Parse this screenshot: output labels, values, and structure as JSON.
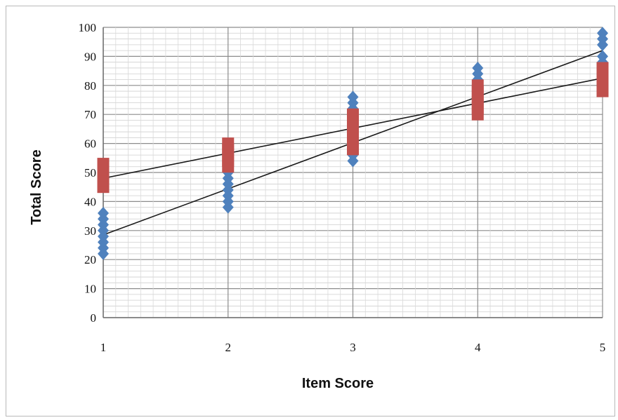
{
  "chart_data": {
    "type": "scatter",
    "title": "",
    "xlabel": "Item Score",
    "ylabel": "Total Score",
    "xlim": [
      1,
      5
    ],
    "ylim": [
      0,
      100
    ],
    "x_ticks": [
      "1",
      "2",
      "3",
      "4",
      "5"
    ],
    "y_ticks": [
      "0",
      "10",
      "20",
      "30",
      "40",
      "50",
      "60",
      "70",
      "80",
      "90",
      "100"
    ],
    "grid": true,
    "legend": "none",
    "series": [
      {
        "marker": "diamond",
        "color": "#4f81bd",
        "x": [
          1,
          1,
          1,
          1,
          1,
          1,
          1,
          1,
          2,
          2,
          2,
          2,
          2,
          2,
          2,
          2,
          2,
          2,
          2,
          3,
          3,
          3,
          3,
          3,
          3,
          3,
          3,
          3,
          3,
          3,
          3,
          4,
          4,
          4,
          4,
          4,
          4,
          4,
          4,
          4,
          5,
          5,
          5,
          5,
          5
        ],
        "y": [
          22,
          24,
          26,
          28,
          30,
          32,
          34,
          36,
          38,
          40,
          42,
          44,
          46,
          48,
          50,
          52,
          54,
          56,
          58,
          54,
          56,
          58,
          60,
          62,
          64,
          66,
          68,
          70,
          72,
          74,
          76,
          70,
          72,
          74,
          76,
          78,
          80,
          82,
          84,
          86,
          88,
          90,
          94,
          96,
          98
        ]
      },
      {
        "marker": "square",
        "color": "#c0504d",
        "x": [
          1,
          1,
          1,
          1,
          1,
          2,
          2,
          2,
          2,
          2,
          3,
          3,
          3,
          3,
          3,
          3,
          3,
          4,
          4,
          4,
          4,
          4,
          4,
          5,
          5,
          5,
          5,
          5
        ],
        "y": [
          45,
          47,
          49,
          51,
          53,
          52,
          54,
          56,
          58,
          60,
          58,
          60,
          62,
          64,
          66,
          68,
          70,
          70,
          72,
          74,
          76,
          78,
          80,
          78,
          80,
          82,
          84,
          86
        ]
      }
    ],
    "trendlines": [
      {
        "color": "#1a1a1a",
        "points": [
          [
            1,
            28.5
          ],
          [
            5,
            92
          ]
        ]
      },
      {
        "color": "#1a1a1a",
        "points": [
          [
            1,
            48
          ],
          [
            5,
            82.5
          ]
        ]
      }
    ]
  }
}
